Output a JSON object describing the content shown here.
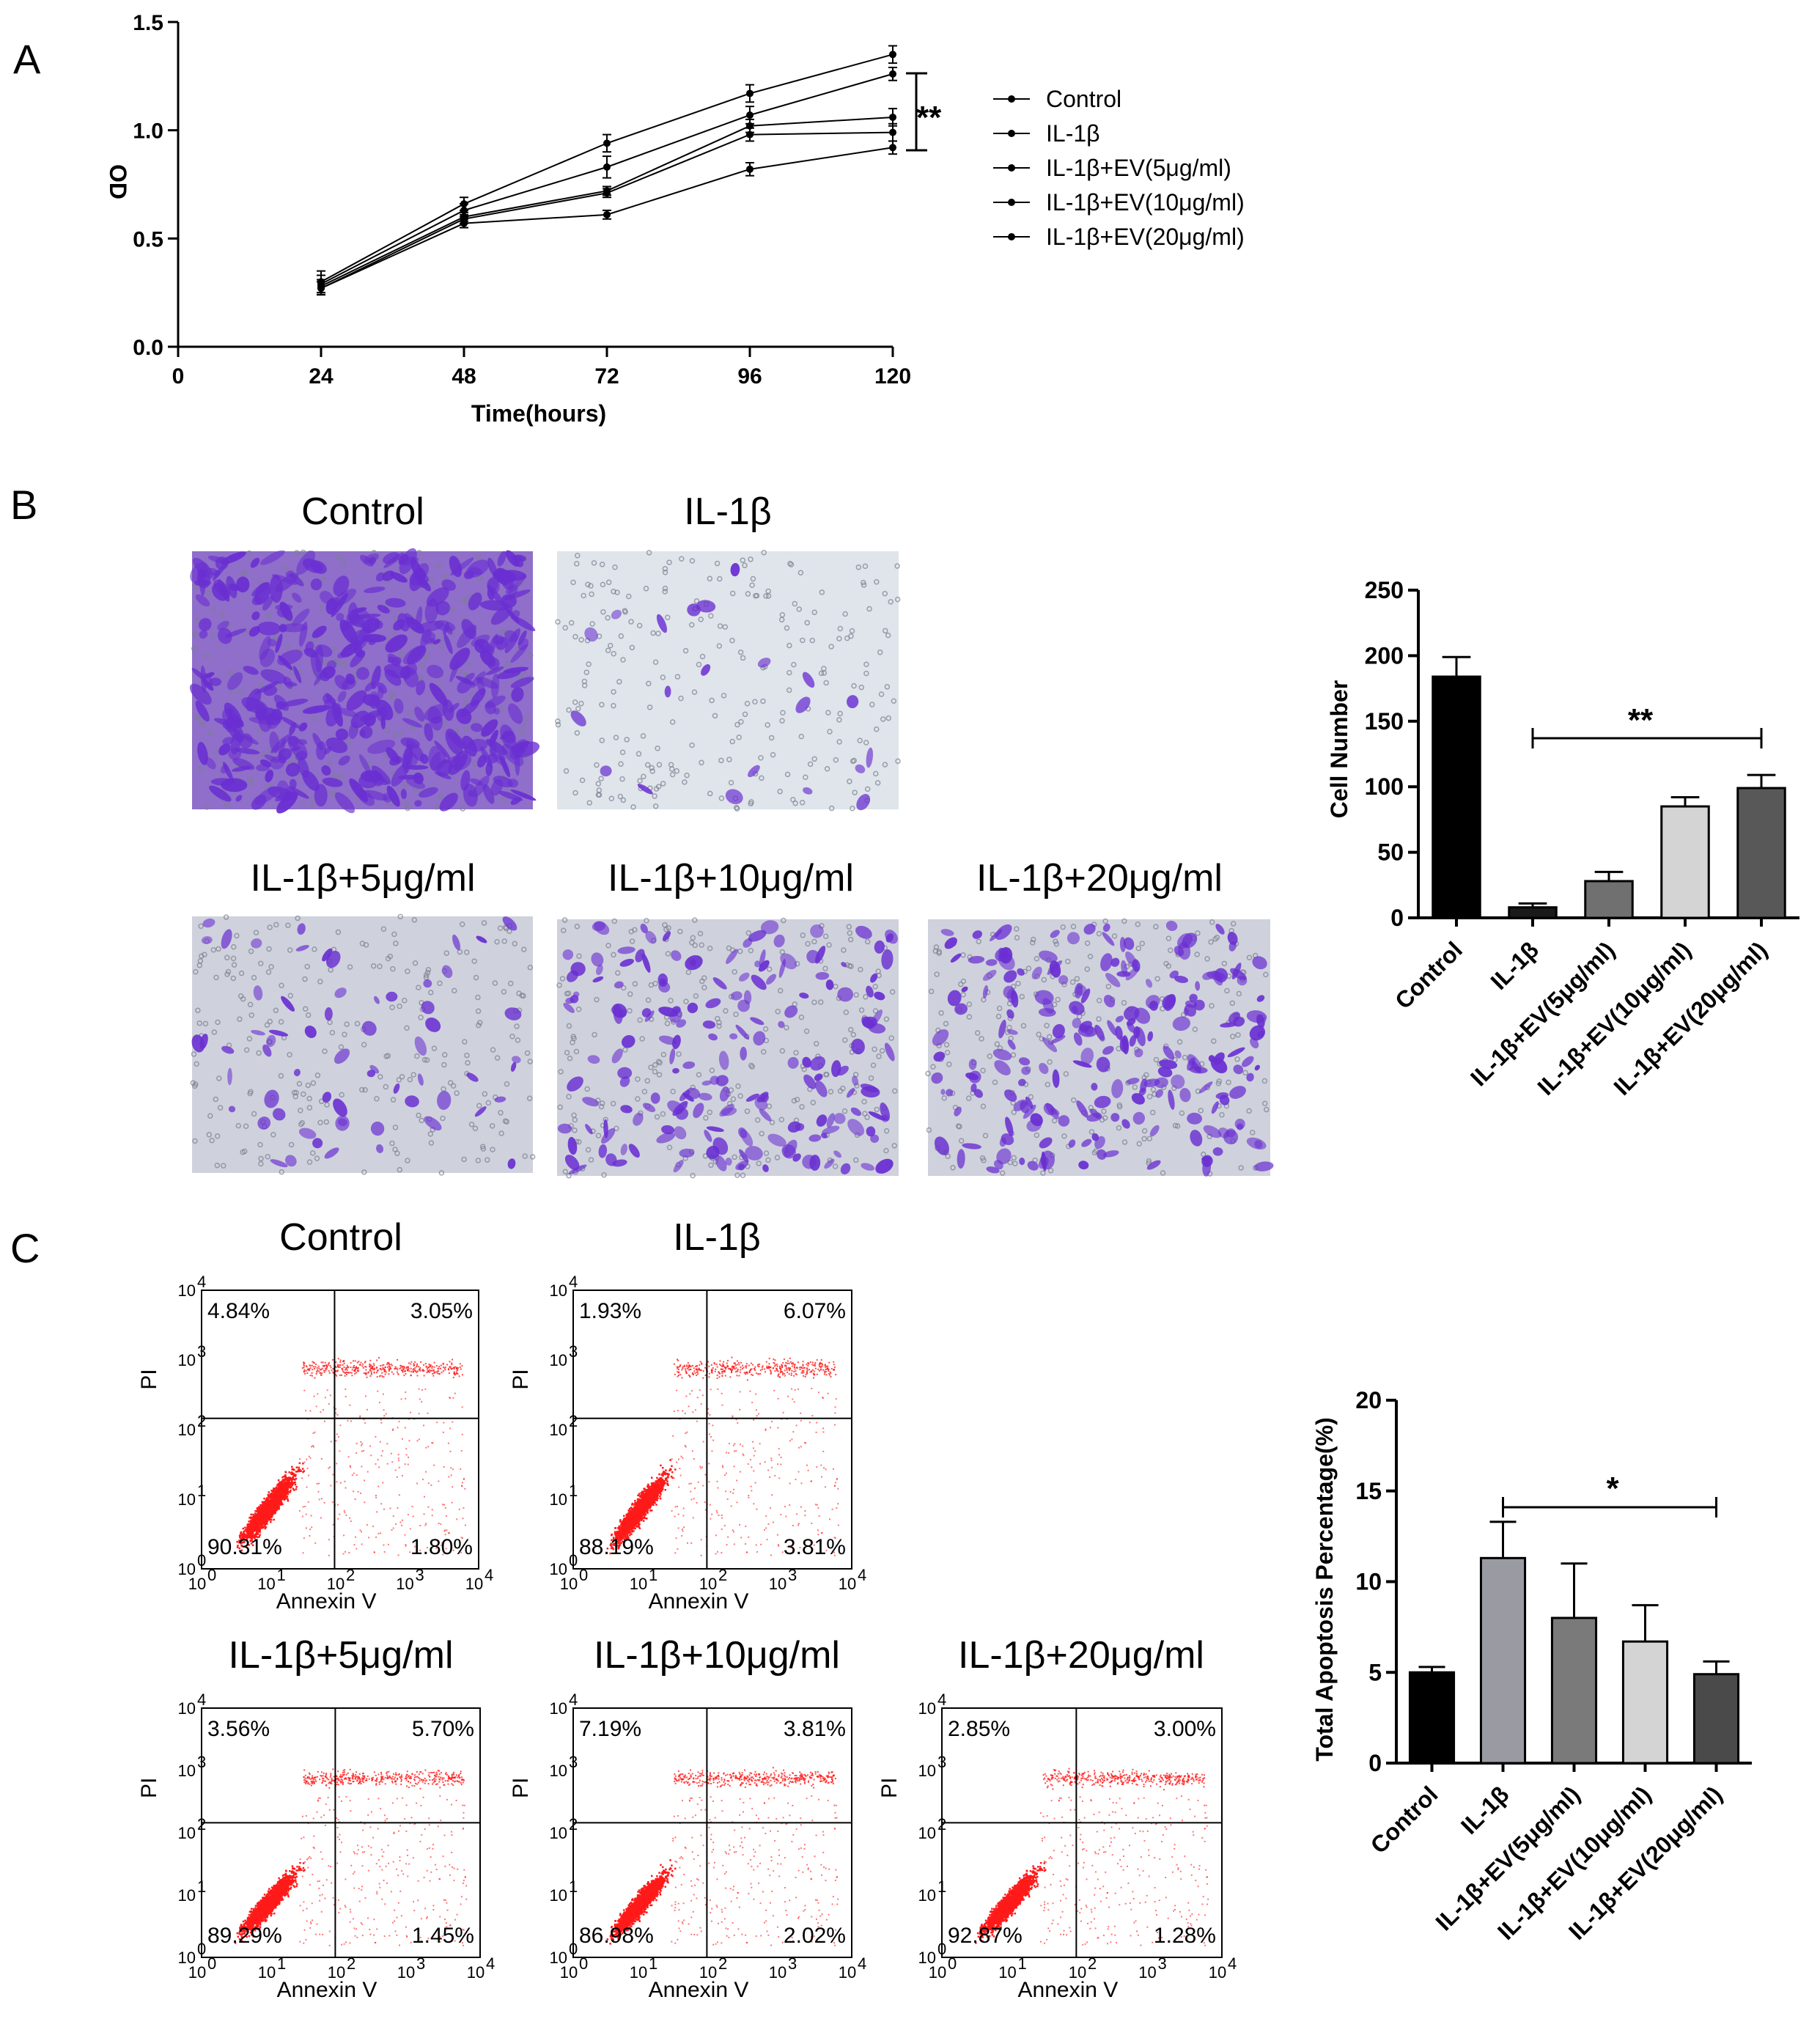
{
  "colors": {
    "line": "#000000",
    "dot": "#ff1a1a",
    "micro_bg": "#d7dce4",
    "stain": "#6a2fd2"
  },
  "panels": {
    "a": "A",
    "b": "B",
    "c": "C"
  },
  "chart_data": [
    {
      "type": "line",
      "title": "",
      "xlabel": "Time(hours)",
      "ylabel": "OD",
      "x": [
        24,
        48,
        72,
        96,
        120
      ],
      "xticks": [
        "0",
        "24",
        "48",
        "72",
        "96",
        "120"
      ],
      "yticks": [
        "0.0",
        "0.5",
        "1.0",
        "1.5"
      ],
      "xlim": [
        0,
        120
      ],
      "ylim": [
        0,
        1.5
      ],
      "series": [
        {
          "name": "Control",
          "values": [
            0.3,
            0.66,
            0.94,
            1.17,
            1.35
          ],
          "err": [
            0.05,
            0.03,
            0.04,
            0.04,
            0.04
          ]
        },
        {
          "name": "IL-1β",
          "values": [
            0.27,
            0.57,
            0.61,
            0.82,
            0.92
          ],
          "err": [
            0.03,
            0.02,
            0.02,
            0.03,
            0.03
          ]
        },
        {
          "name": "IL-1β+EV(5μg/ml)",
          "values": [
            0.27,
            0.59,
            0.71,
            0.98,
            0.99
          ],
          "err": [
            0.03,
            0.02,
            0.02,
            0.03,
            0.04
          ]
        },
        {
          "name": "IL-1β+EV(10μg/ml)",
          "values": [
            0.28,
            0.6,
            0.72,
            1.02,
            1.06
          ],
          "err": [
            0.03,
            0.02,
            0.02,
            0.03,
            0.04
          ]
        },
        {
          "name": "IL-1β+EV(20μg/ml)",
          "values": [
            0.29,
            0.63,
            0.83,
            1.07,
            1.26
          ],
          "err": [
            0.04,
            0.03,
            0.05,
            0.04,
            0.03
          ]
        }
      ],
      "significance": "**",
      "legend": "right"
    },
    {
      "type": "bar",
      "title": "",
      "ylabel": "Cell Number",
      "categories": [
        "Control",
        "IL-1β",
        "IL-1β+EV(5μg/ml)",
        "IL-1β+EV(10μg/ml)",
        "IL-1β+EV(20μg/ml)"
      ],
      "values": [
        184,
        8,
        28,
        85,
        99
      ],
      "err": [
        15,
        3,
        7,
        7,
        10
      ],
      "colors": [
        "#000000",
        "#1a1a1a",
        "#707070",
        "#d4d4d4",
        "#585858"
      ],
      "yticks": [
        "0",
        "50",
        "100",
        "150",
        "200",
        "250"
      ],
      "ylim": [
        0,
        250
      ],
      "significance": "**"
    },
    {
      "type": "bar",
      "title": "",
      "ylabel": "Total Apoptosis Percentage(%)",
      "categories": [
        "Control",
        "IL-1β",
        "IL-1β+EV(5μg/ml)",
        "IL-1β+EV(10μg/ml)",
        "IL-1β+EV(20μg/ml)"
      ],
      "values": [
        5.0,
        11.3,
        8.0,
        6.7,
        4.9
      ],
      "err": [
        0.3,
        2.0,
        3.0,
        2.0,
        0.7
      ],
      "colors": [
        "#000000",
        "#9a9aa2",
        "#7a7a7a",
        "#d4d4d4",
        "#4a4a4a"
      ],
      "yticks": [
        "0",
        "5",
        "10",
        "15",
        "20"
      ],
      "ylim": [
        0,
        20
      ],
      "significance": "*"
    },
    {
      "type": "scatter",
      "subtype": "flow-cytometry",
      "xlabel": "Annexin V",
      "ylabel": "PI",
      "axis_scale": "log10 (10^0–10^4)",
      "plots": [
        {
          "title": "Control",
          "ul": "4.84%",
          "ur": "3.05%",
          "ll": "90.31%",
          "lr": "1.80%"
        },
        {
          "title": "IL-1β",
          "ul": "1.93%",
          "ur": "6.07%",
          "ll": "88.19%",
          "lr": "3.81%"
        },
        {
          "title": "IL-1β+5μg/ml",
          "ul": "3.56%",
          "ur": "5.70%",
          "ll": "89.29%",
          "lr": "1.45%"
        },
        {
          "title": "IL-1β+10μg/ml",
          "ul": "7.19%",
          "ur": "3.81%",
          "ll": "86.98%",
          "lr": "2.02%"
        },
        {
          "title": "IL-1β+20μg/ml",
          "ul": "2.85%",
          "ur": "3.00%",
          "ll": "92.87%",
          "lr": "1.28%"
        }
      ]
    }
  ],
  "micrographs": [
    {
      "title": "Control",
      "density": 1.0
    },
    {
      "title": "IL-1β",
      "density": 0.05
    },
    {
      "title": "IL-1β+5μg/ml",
      "density": 0.15
    },
    {
      "title": "IL-1β+10μg/ml",
      "density": 0.45
    },
    {
      "title": "IL-1β+20μg/ml",
      "density": 0.55
    }
  ]
}
